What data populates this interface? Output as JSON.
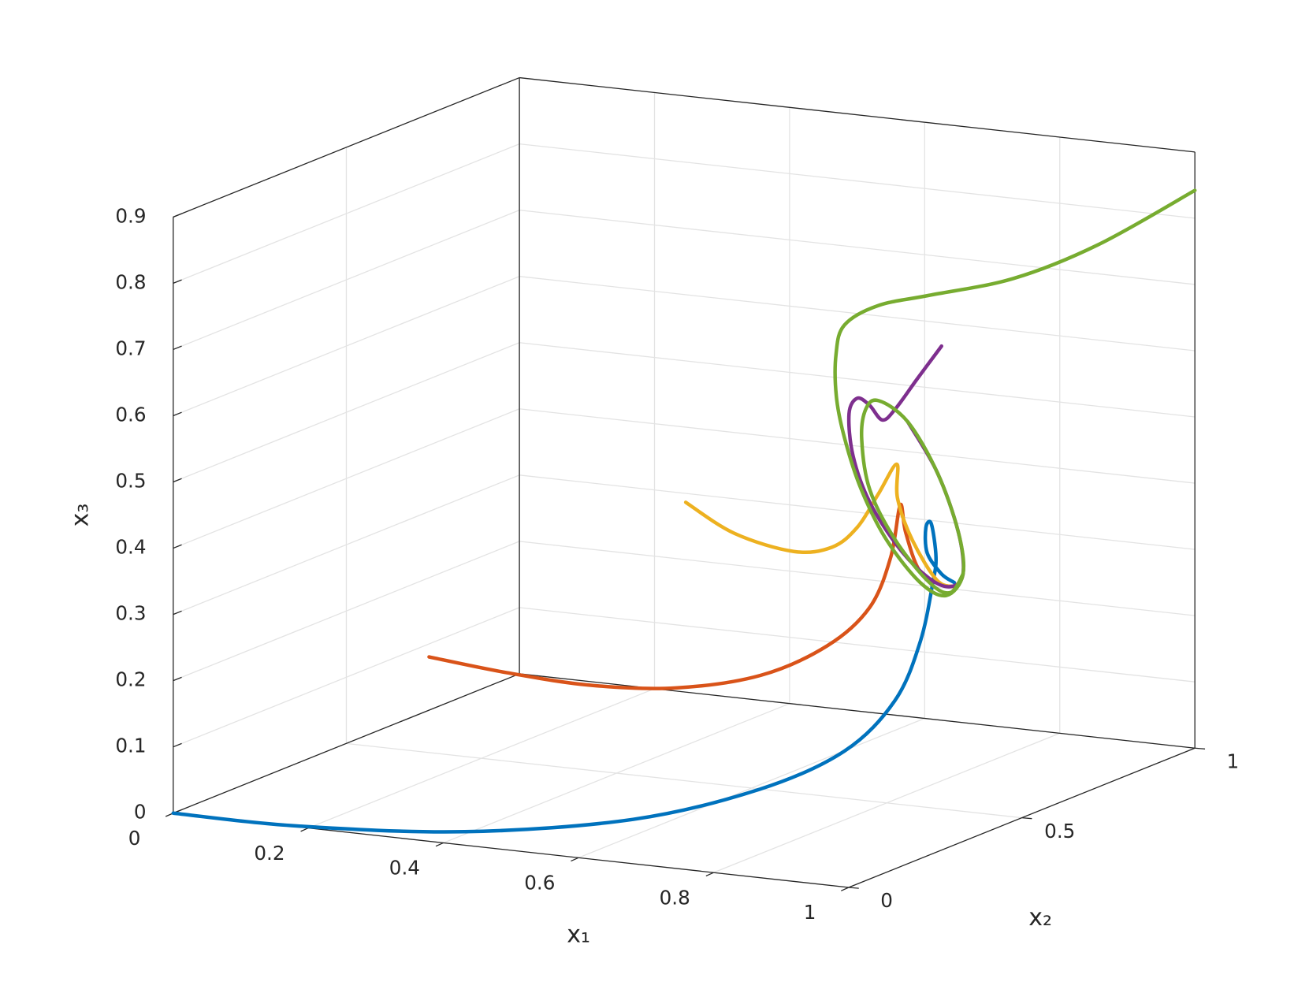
{
  "chart_data": {
    "type": "line3d",
    "xlabel": "x₁",
    "ylabel": "x₂",
    "zlabel": "x₃",
    "xlim": [
      0,
      1
    ],
    "ylim": [
      0,
      1
    ],
    "zlim": [
      0,
      0.9
    ],
    "xticks": [
      0,
      0.2,
      0.4,
      0.6,
      0.8,
      1
    ],
    "yticks": [
      0,
      0.5,
      1
    ],
    "zticks": [
      0,
      0.1,
      0.2,
      0.3,
      0.4,
      0.5,
      0.6,
      0.7,
      0.8,
      0.9
    ],
    "grid": true,
    "series": [
      {
        "color": "#0072bd",
        "x": [
          0,
          0.181,
          0.406,
          0.62,
          0.766,
          0.85,
          0.889,
          0.901,
          0.894,
          0.873,
          0.866,
          0.858,
          0.86,
          0.881,
          0.9
        ],
        "y": [
          0,
          0,
          0.05,
          0.12,
          0.2,
          0.28,
          0.35,
          0.4,
          0.45,
          0.5,
          0.5,
          0.5,
          0.5,
          0.5,
          0.5
        ],
        "z": [
          0,
          0.001,
          0.007,
          0.035,
          0.08,
          0.13,
          0.196,
          0.276,
          0.354,
          0.379,
          0.429,
          0.422,
          0.384,
          0.355,
          0.344
        ]
      },
      {
        "color": "#d95319",
        "x": [
          0.225,
          0.325,
          0.434,
          0.544,
          0.654,
          0.738,
          0.79,
          0.811,
          0.82,
          0.828,
          0.848,
          0.878,
          0.903
        ],
        "y": [
          0.3,
          0.33,
          0.36,
          0.39,
          0.42,
          0.45,
          0.47,
          0.49,
          0.5,
          0.5,
          0.5,
          0.5,
          0.5
        ],
        "z": [
          0.198,
          0.179,
          0.166,
          0.168,
          0.193,
          0.241,
          0.3,
          0.374,
          0.452,
          0.412,
          0.357,
          0.339,
          0.338
        ]
      },
      {
        "color": "#edb120",
        "x": [
          0.605,
          0.662,
          0.729,
          0.765,
          0.787,
          0.803,
          0.815,
          0.816,
          0.838,
          0.875,
          0.903
        ],
        "y": [
          0.3,
          0.33,
          0.37,
          0.41,
          0.44,
          0.47,
          0.5,
          0.5,
          0.5,
          0.5,
          0.5
        ],
        "z": [
          0.474,
          0.427,
          0.399,
          0.401,
          0.427,
          0.473,
          0.513,
          0.462,
          0.401,
          0.344,
          0.338
        ]
      },
      {
        "color": "#7e2f8e",
        "x": [
          0.83,
          0.803,
          0.782,
          0.768,
          0.754,
          0.741,
          0.734,
          0.745,
          0.775,
          0.819,
          0.863,
          0.894,
          0.913,
          0.906,
          0.875,
          0.831
        ],
        "y": [
          0.6,
          0.58,
          0.56,
          0.55,
          0.54,
          0.53,
          0.52,
          0.51,
          0.5,
          0.5,
          0.5,
          0.5,
          0.5,
          0.5,
          0.5,
          0.5
        ],
        "z": [
          0.672,
          0.622,
          0.58,
          0.564,
          0.587,
          0.598,
          0.576,
          0.516,
          0.451,
          0.386,
          0.346,
          0.337,
          0.358,
          0.421,
          0.507,
          0.579
        ]
      },
      {
        "color": "#77ac30",
        "x": [
          1,
          0.882,
          0.793,
          0.709,
          0.664,
          0.635,
          0.643,
          0.664,
          0.697,
          0.737,
          0.79,
          0.85,
          0.888,
          0.913,
          0.906,
          0.875,
          0.831,
          0.788,
          0.769,
          0.763,
          0.775,
          0.813,
          0.863,
          0.894,
          0.913
        ],
        "y": [
          1,
          0.95,
          0.88,
          0.8,
          0.74,
          0.7,
          0.66,
          0.62,
          0.58,
          0.55,
          0.52,
          0.5,
          0.5,
          0.5,
          0.5,
          0.5,
          0.5,
          0.5,
          0.5,
          0.5,
          0.5,
          0.5,
          0.5,
          0.5,
          0.5
        ],
        "z": [
          0.842,
          0.757,
          0.711,
          0.693,
          0.685,
          0.661,
          0.626,
          0.573,
          0.521,
          0.455,
          0.391,
          0.338,
          0.323,
          0.358,
          0.421,
          0.507,
          0.579,
          0.606,
          0.591,
          0.545,
          0.47,
          0.398,
          0.34,
          0.328,
          0.358
        ]
      }
    ]
  }
}
